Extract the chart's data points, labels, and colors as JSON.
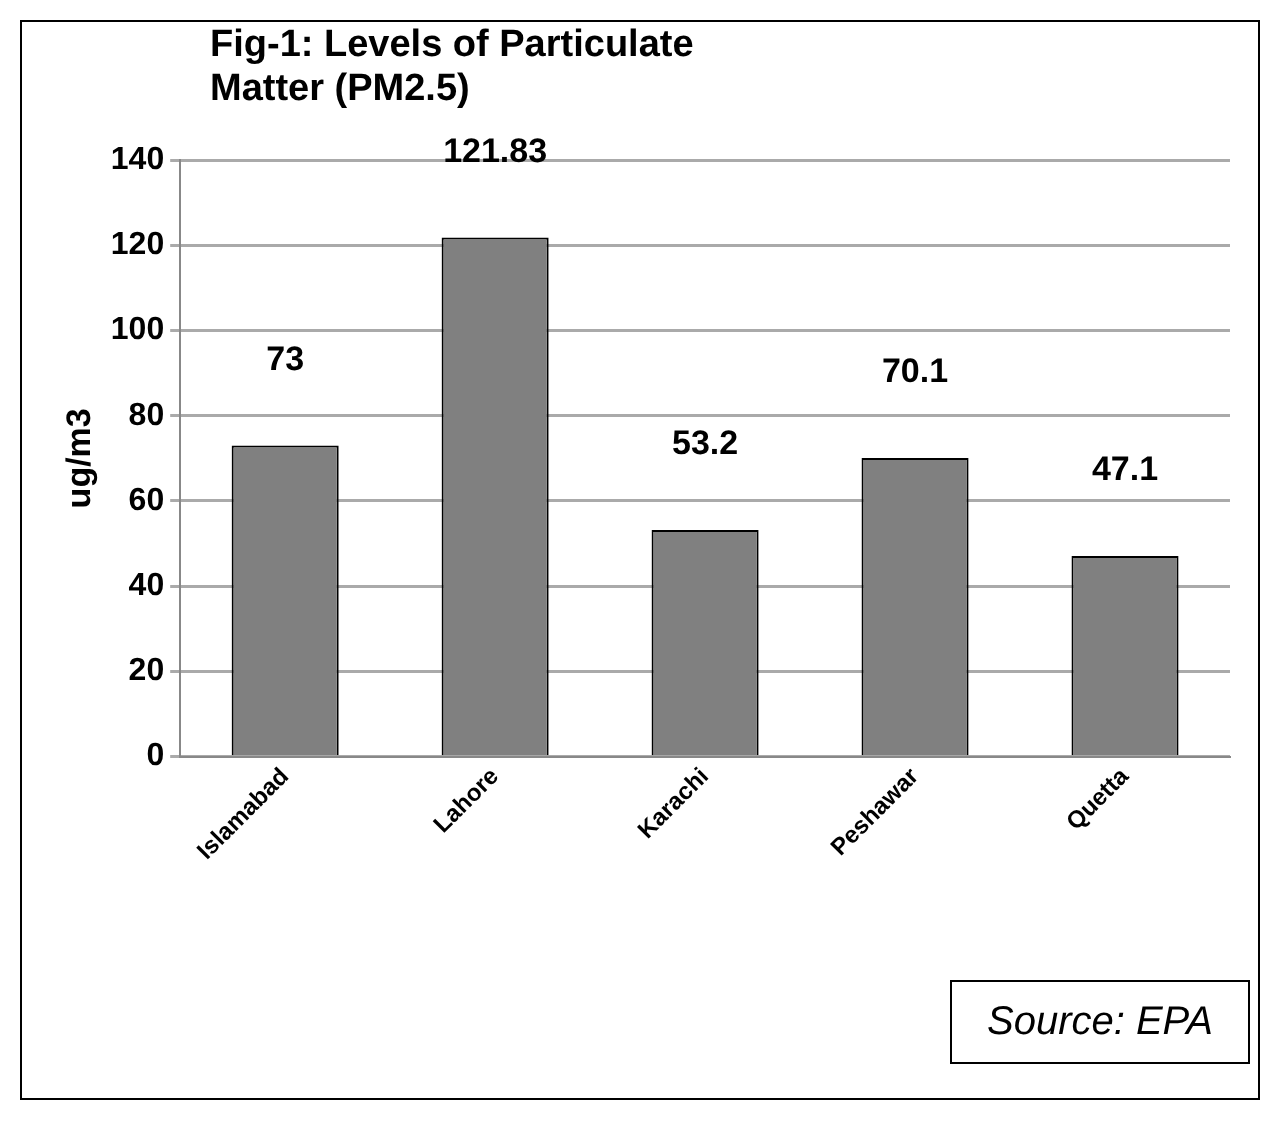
{
  "chart_data": {
    "type": "bar",
    "title": "Fig-1: Levels of Particulate Matter (PM2.5)",
    "ylabel": "ug/m3",
    "categories": [
      "Islamabad",
      "Lahore",
      "Karachi",
      "Peshawar",
      "Quetta"
    ],
    "values": [
      73,
      121.83,
      53.2,
      70.1,
      47.1
    ],
    "color": "#808080",
    "ylim": [
      0,
      140
    ],
    "yticks": [
      0,
      20,
      40,
      60,
      80,
      100,
      120,
      140
    ],
    "grid": "y",
    "data_labels": true,
    "legend": false,
    "annotations": [
      "Source: EPA"
    ]
  }
}
